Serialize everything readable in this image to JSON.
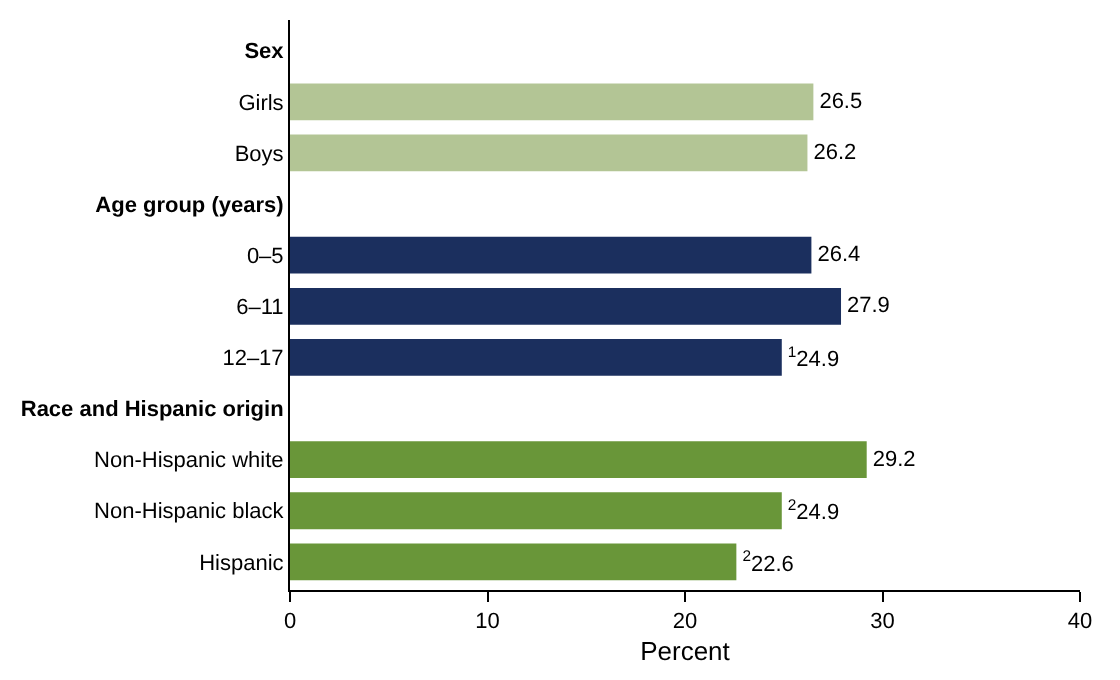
{
  "chart_data": {
    "type": "bar",
    "orientation": "horizontal",
    "categories": [
      "Sex",
      "Girls",
      "Boys",
      "Age group (years)",
      "0–5",
      "6–11",
      "12–17",
      "Race and Hispanic origin",
      "Non-Hispanic white",
      "Non-Hispanic black",
      "Hispanic"
    ],
    "values": [
      null,
      26.5,
      26.2,
      null,
      26.4,
      27.9,
      24.9,
      null,
      29.2,
      24.9,
      22.6
    ],
    "colors": [
      "#b3c595",
      "#b3c595",
      "#b3c595",
      "#1b2f5e",
      "#1b2f5e",
      "#1b2f5e",
      "#1b2f5e",
      "#699639",
      "#699639",
      "#699639",
      "#699639"
    ],
    "value_labels": [
      null,
      "26.5",
      "26.2",
      null,
      "26.4",
      "27.9",
      "$^{1}$24.9",
      null,
      "29.2",
      "$^{2}$24.9",
      "$^{2}$22.6"
    ],
    "xlabel": "Percent",
    "xlim": [
      0,
      40
    ],
    "xticks": [
      0,
      10,
      20,
      30,
      40
    ],
    "legend": false
  }
}
